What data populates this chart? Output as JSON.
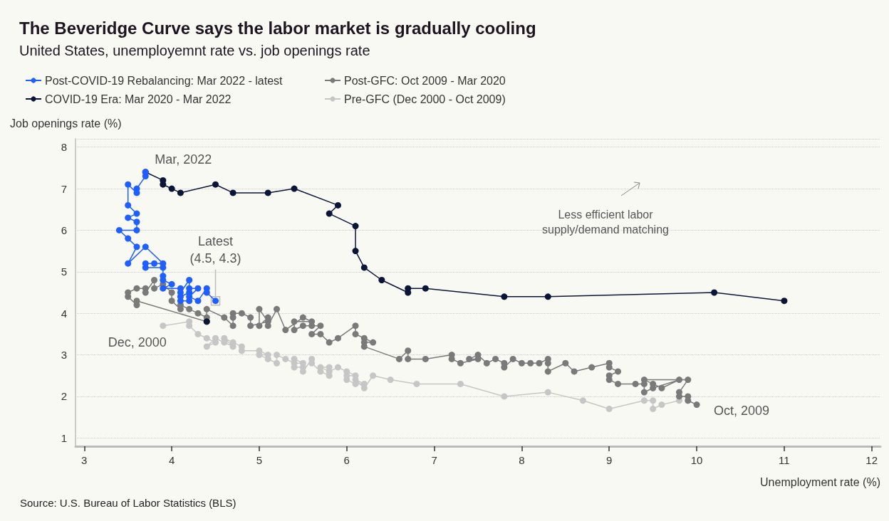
{
  "chart_data": {
    "type": "line",
    "title": "The Beveridge Curve says the labor market is gradually cooling",
    "subtitle": "United States, unemployemnt rate vs. job openings rate",
    "xlabel": "Unemployment rate (%)",
    "ylabel": "Job openings rate (%)",
    "xlim": [
      2.9,
      12.1
    ],
    "xticks": [
      3,
      4,
      5,
      6,
      7,
      8,
      9,
      10,
      11,
      12
    ],
    "ylim": [
      0.8,
      8.2
    ],
    "yticks": [
      1,
      2,
      3,
      4,
      5,
      6,
      7,
      8
    ],
    "grid": "y",
    "legend": "top left",
    "marker": "circle",
    "line_style": "solid",
    "series": [
      {
        "name": "Pre-GFC (Dec 2000 - Oct 2009)",
        "color": "#c6c6c6",
        "x": [
          3.9,
          4.2,
          4.2,
          4.3,
          4.4,
          4.5,
          4.4,
          4.5,
          4.6,
          4.7,
          4.6,
          4.7,
          4.8,
          4.8,
          5.0,
          5.1,
          5.0,
          5.1,
          5.2,
          5.2,
          5.3,
          5.4,
          5.5,
          5.4,
          5.4,
          5.5,
          5.5,
          5.6,
          5.6,
          5.7,
          5.8,
          5.8,
          5.7,
          5.8,
          5.9,
          6.0,
          6.1,
          6.0,
          6.0,
          6.1,
          6.2,
          6.1,
          6.2,
          6.3,
          6.5,
          6.8,
          7.3,
          7.8,
          8.3,
          8.7,
          9.0,
          9.4,
          9.5,
          9.5,
          9.6,
          9.8
        ],
        "values": [
          3.7,
          3.8,
          3.7,
          3.5,
          3.4,
          3.3,
          3.2,
          3.4,
          3.3,
          3.2,
          3.4,
          3.3,
          3.2,
          3.1,
          3.1,
          3.0,
          3.0,
          2.9,
          2.8,
          3.0,
          2.9,
          2.8,
          2.8,
          2.9,
          2.7,
          2.7,
          2.6,
          2.9,
          2.8,
          2.6,
          2.5,
          2.7,
          2.7,
          2.6,
          2.7,
          2.6,
          2.5,
          2.5,
          2.4,
          2.3,
          2.3,
          2.4,
          2.2,
          2.5,
          2.4,
          2.3,
          2.3,
          2.0,
          2.1,
          1.9,
          1.7,
          1.9,
          1.9,
          1.7,
          1.8,
          1.9
        ]
      },
      {
        "name": "Post-GFC: Oct 2009 - Mar 2020",
        "color": "#7a7a7a",
        "x": [
          10.0,
          9.9,
          9.9,
          9.8,
          9.8,
          9.9,
          9.4,
          9.5,
          9.6,
          9.8,
          9.5,
          9.4,
          9.4,
          9.3,
          9.1,
          9.0,
          9.0,
          9.1,
          9.0,
          9.0,
          8.8,
          8.6,
          8.5,
          8.3,
          8.3,
          8.3,
          8.2,
          8.1,
          8.0,
          7.9,
          7.8,
          7.8,
          7.7,
          7.6,
          7.5,
          7.4,
          7.5,
          7.3,
          7.2,
          7.2,
          6.9,
          6.7,
          6.7,
          6.6,
          6.2,
          6.2,
          6.3,
          6.2,
          6.1,
          6.1,
          5.9,
          5.8,
          5.7,
          5.6,
          5.7,
          5.6,
          5.5,
          5.4,
          5.4,
          5.6,
          5.5,
          5.3,
          5.2,
          5.1,
          5.1,
          5.0,
          5.0,
          5.1,
          4.9,
          4.9,
          4.8,
          4.7,
          4.7,
          4.7,
          4.6,
          4.4,
          4.4,
          4.3,
          4.2,
          4.1,
          4.1,
          4.0,
          4.0,
          3.9,
          3.8,
          3.8,
          3.7,
          3.7,
          3.6,
          3.5,
          3.5,
          3.6,
          3.6,
          4.4
        ],
        "values": [
          1.8,
          1.9,
          2.0,
          2.0,
          2.1,
          2.4,
          2.4,
          2.3,
          2.2,
          2.4,
          2.2,
          2.1,
          2.3,
          2.3,
          2.3,
          2.4,
          2.5,
          2.6,
          2.7,
          2.8,
          2.7,
          2.6,
          2.8,
          2.6,
          2.8,
          2.9,
          2.8,
          2.8,
          2.8,
          2.9,
          2.7,
          2.8,
          2.9,
          2.8,
          3.0,
          2.9,
          2.9,
          2.8,
          2.9,
          3.0,
          2.9,
          2.9,
          3.1,
          2.9,
          3.2,
          3.3,
          3.3,
          3.4,
          3.5,
          3.7,
          3.4,
          3.3,
          3.5,
          3.5,
          3.7,
          3.7,
          3.7,
          3.6,
          3.8,
          3.8,
          3.9,
          3.6,
          4.1,
          3.7,
          3.9,
          3.7,
          4.1,
          3.8,
          3.7,
          3.9,
          4.0,
          4.0,
          3.9,
          3.7,
          3.9,
          4.1,
          3.9,
          4.0,
          4.1,
          4.2,
          4.1,
          4.3,
          4.5,
          4.7,
          4.6,
          4.8,
          4.5,
          4.6,
          4.6,
          4.5,
          4.4,
          4.2,
          4.3,
          3.8
        ]
      },
      {
        "name": "COVID-19 Era: Mar 2020 - Mar 2022",
        "color": "#0b1538",
        "x": [
          4.4,
          null,
          11.0,
          10.2,
          8.3,
          7.8,
          6.9,
          6.7,
          6.7,
          6.4,
          6.2,
          6.1,
          6.1,
          5.8,
          5.9,
          5.4,
          5.1,
          4.7,
          4.5,
          4.1,
          4.0,
          3.9,
          3.9,
          3.7
        ],
        "values": [
          3.8,
          null,
          4.3,
          4.5,
          4.4,
          4.4,
          4.6,
          4.6,
          4.5,
          4.8,
          5.1,
          5.5,
          6.1,
          6.4,
          6.6,
          7.0,
          6.9,
          6.9,
          7.1,
          6.9,
          7.0,
          7.1,
          7.2,
          7.4
        ]
      },
      {
        "name": "Post-COVID-19 Rebalancing: Mar 2022 - latest",
        "color": "#1f5fff",
        "x": [
          3.7,
          3.7,
          3.6,
          3.6,
          3.5,
          3.5,
          3.6,
          3.5,
          3.6,
          3.6,
          3.4,
          3.5,
          3.6,
          3.5,
          3.7,
          3.9,
          3.8,
          3.7,
          3.7,
          3.9,
          3.9,
          3.9,
          4.0,
          3.9,
          4.1,
          4.1,
          4.2,
          4.2,
          4.1,
          4.1,
          4.2,
          4.2,
          4.3,
          4.2,
          4.3,
          4.4,
          4.4,
          4.5
        ],
        "values": [
          7.4,
          7.3,
          7.0,
          6.9,
          7.1,
          6.6,
          6.4,
          6.3,
          6.2,
          6.0,
          6.0,
          5.8,
          5.6,
          5.2,
          5.6,
          5.2,
          5.2,
          5.2,
          5.1,
          5.1,
          4.9,
          4.8,
          4.7,
          4.6,
          4.6,
          4.5,
          4.8,
          4.5,
          4.4,
          4.3,
          4.3,
          4.6,
          4.6,
          4.4,
          4.3,
          4.6,
          4.5,
          4.3
        ]
      }
    ],
    "annotations": [
      {
        "text": "Mar, 2022",
        "x": 3.7,
        "y": 7.4
      },
      {
        "text": "Latest\n(4.5, 4.3)",
        "x": 4.5,
        "y": 4.3
      },
      {
        "text": "Dec, 2000",
        "x": 3.9,
        "y": 3.7
      },
      {
        "text": "Oct, 2009",
        "x": 10.0,
        "y": 1.8
      },
      "Less efficient labor\nsupply/demand matching",
      "Source: U.S. Bureau of Labor Statistics (BLS)"
    ]
  }
}
